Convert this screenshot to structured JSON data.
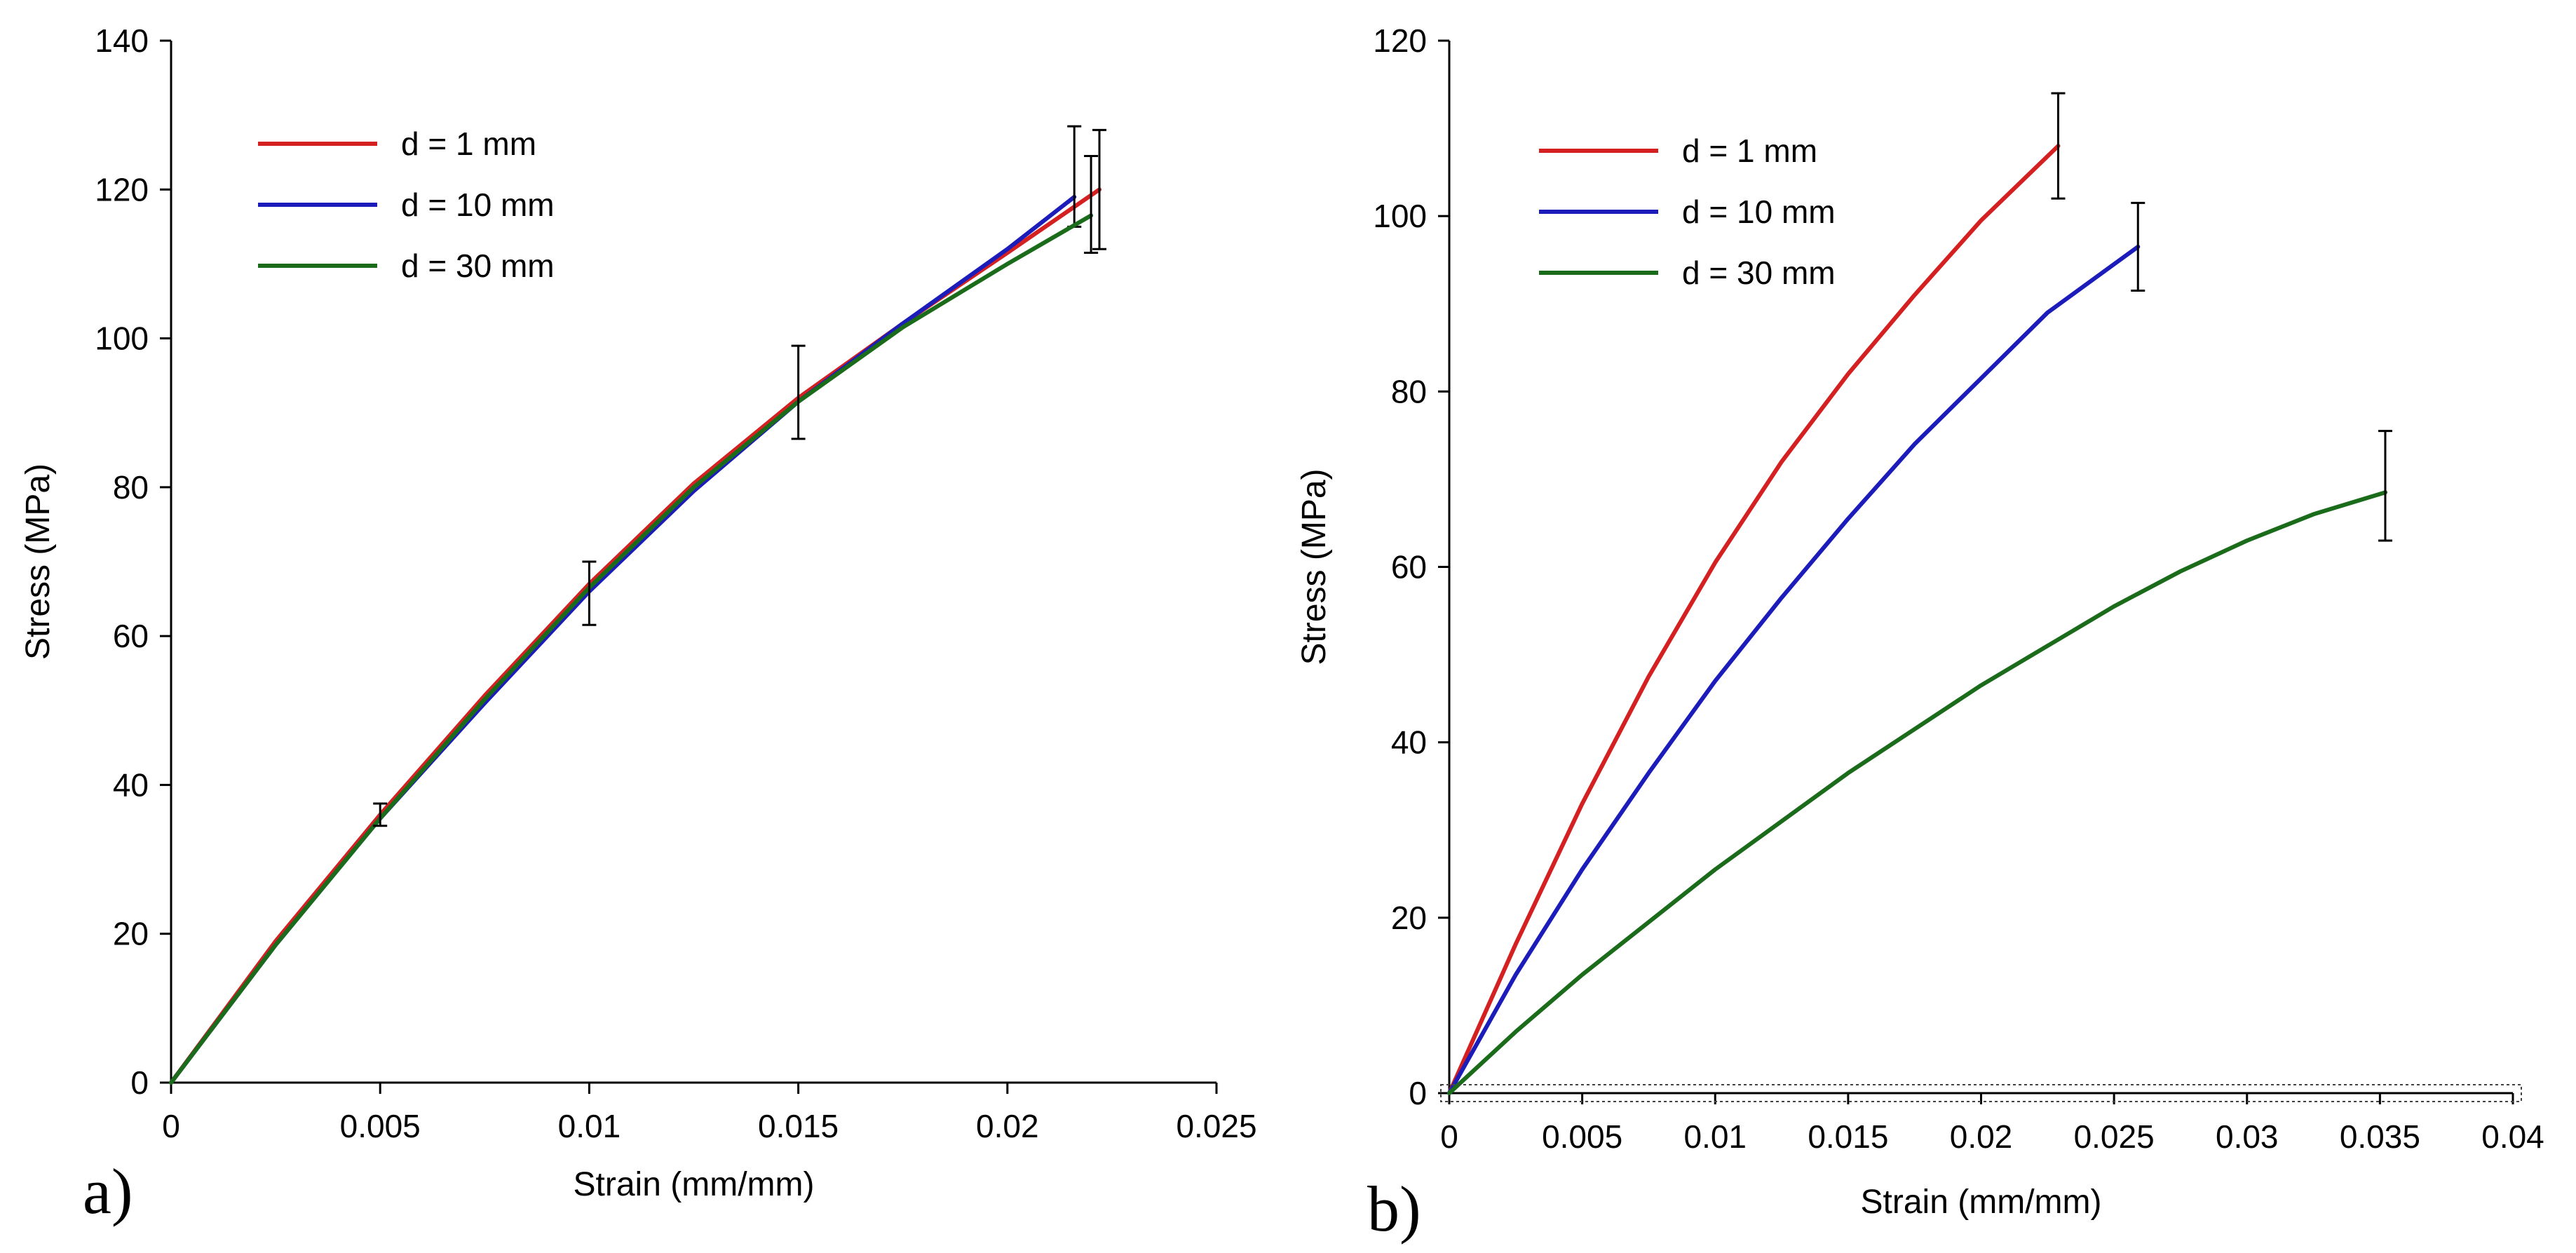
{
  "colors": {
    "red": "#d42020",
    "blue": "#1c1cbb",
    "green": "#1a6b1a",
    "axis": "#000000"
  },
  "chart_data": [
    {
      "type": "line",
      "panel_label": "a)",
      "xlabel": "Strain (mm/mm)",
      "ylabel": "Stress (MPa)",
      "xlim": [
        0,
        0.025
      ],
      "ylim": [
        0,
        140
      ],
      "xticks": [
        0,
        0.005,
        0.01,
        0.015,
        0.02,
        0.025
      ],
      "xtick_labels": [
        "0",
        "0.005",
        "0.01",
        "0.015",
        "0.02",
        "0.025"
      ],
      "yticks": [
        0,
        20,
        40,
        60,
        80,
        100,
        120,
        140
      ],
      "ytick_labels": [
        "0",
        "20",
        "40",
        "60",
        "80",
        "100",
        "120",
        "140"
      ],
      "legend_position": "top-left",
      "series": [
        {
          "name": "d = 1 mm",
          "color": "#d42020",
          "x": [
            0,
            0.0025,
            0.005,
            0.0075,
            0.01,
            0.0125,
            0.015,
            0.0175,
            0.02,
            0.0222
          ],
          "y": [
            0,
            19,
            36,
            52,
            67,
            80.5,
            92,
            102,
            111.5,
            120
          ],
          "end_error": [
            112,
            128
          ]
        },
        {
          "name": "d = 10 mm",
          "color": "#1c1cbb",
          "x": [
            0,
            0.0025,
            0.005,
            0.0075,
            0.01,
            0.0125,
            0.015,
            0.0175,
            0.02,
            0.0216
          ],
          "y": [
            0,
            18.5,
            35.5,
            51,
            66,
            79.5,
            91.5,
            102,
            112,
            119
          ],
          "end_error": [
            115,
            128.5
          ]
        },
        {
          "name": "d = 30 mm",
          "color": "#1a6b1a",
          "x": [
            0,
            0.0025,
            0.005,
            0.0075,
            0.01,
            0.0125,
            0.015,
            0.0175,
            0.02,
            0.022
          ],
          "y": [
            0,
            18.5,
            35.5,
            51.5,
            66.5,
            80,
            91.5,
            101.5,
            110,
            116.5
          ],
          "end_error": [
            111.5,
            124.5
          ]
        }
      ],
      "intermediate_error_bars": [
        {
          "x": 0.005,
          "low": 34.5,
          "high": 37.5
        },
        {
          "x": 0.01,
          "low": 61.5,
          "high": 70
        },
        {
          "x": 0.015,
          "low": 86.5,
          "high": 99
        }
      ]
    },
    {
      "type": "line",
      "panel_label": "b)",
      "xlabel": "Strain (mm/mm)",
      "ylabel": "Stress (MPa)",
      "xlim": [
        0,
        0.04
      ],
      "ylim": [
        0,
        120
      ],
      "xticks": [
        0,
        0.005,
        0.01,
        0.015,
        0.02,
        0.025,
        0.03,
        0.035,
        0.04
      ],
      "xtick_labels": [
        "0",
        "0.005",
        "0.01",
        "0.015",
        "0.02",
        "0.025",
        "0.03",
        "0.035",
        "0.04"
      ],
      "yticks": [
        0,
        20,
        40,
        60,
        80,
        100,
        120
      ],
      "ytick_labels": [
        "0",
        "20",
        "40",
        "60",
        "80",
        "100",
        "120"
      ],
      "legend_position": "top-left",
      "series": [
        {
          "name": "d = 1 mm",
          "color": "#d42020",
          "x": [
            0,
            0.0025,
            0.005,
            0.0075,
            0.01,
            0.0125,
            0.015,
            0.0175,
            0.02,
            0.0229
          ],
          "y": [
            0,
            17,
            33,
            47.5,
            60.5,
            72,
            82,
            91,
            99.5,
            108
          ],
          "end_error": [
            102,
            114
          ]
        },
        {
          "name": "d = 10 mm",
          "color": "#1c1cbb",
          "x": [
            0,
            0.0025,
            0.005,
            0.0075,
            0.01,
            0.0125,
            0.015,
            0.0175,
            0.02,
            0.0225,
            0.0259
          ],
          "y": [
            0,
            13.5,
            25.5,
            36.5,
            47,
            56.5,
            65.5,
            74,
            81.5,
            89,
            96.5
          ],
          "end_error": [
            91.5,
            101.5
          ]
        },
        {
          "name": "d = 30 mm",
          "color": "#1a6b1a",
          "x": [
            0,
            0.0025,
            0.005,
            0.0075,
            0.01,
            0.0125,
            0.015,
            0.0175,
            0.02,
            0.0225,
            0.025,
            0.0275,
            0.03,
            0.0325,
            0.0352
          ],
          "y": [
            0,
            7,
            13.5,
            19.5,
            25.5,
            31,
            36.5,
            41.5,
            46.5,
            51,
            55.5,
            59.5,
            63,
            66,
            68.5
          ],
          "end_error": [
            63,
            75.5
          ]
        }
      ],
      "intermediate_error_bars": []
    }
  ]
}
